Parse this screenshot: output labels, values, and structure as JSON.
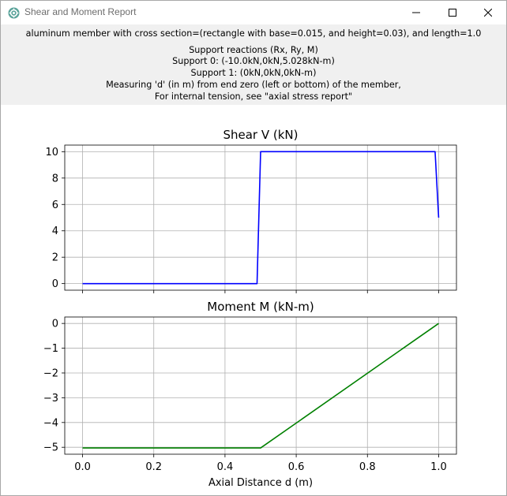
{
  "window": {
    "title": "Shear and Moment Report",
    "icon": "gear-icon",
    "controls": [
      "minimize-icon",
      "maximize-icon",
      "close-icon"
    ]
  },
  "header": {
    "description": "aluminum member with cross section=(rectangle with base=0.015, and height=0.03), and length=1.0",
    "reactions_title": "Support reactions (Rx, Ry, M)",
    "support0": "Support 0: (-10.0kN,0kN,5.028kN-m)",
    "support1": "Support 1: (0kN,0kN,0kN-m)",
    "measuring_note": "Measuring 'd' (in m) from end zero (left or bottom) of the member,",
    "tension_note": "For internal tension, see \"axial stress report\""
  },
  "chart_data": [
    {
      "type": "line",
      "title": "Shear V (kN)",
      "xlabel": "",
      "ylabel": "",
      "xlim": [
        -0.05,
        1.05
      ],
      "ylim": [
        -0.5,
        10.5
      ],
      "yticks": [
        0,
        2,
        4,
        6,
        8,
        10
      ],
      "xticks": [
        0.0,
        0.2,
        0.4,
        0.6,
        0.8,
        1.0
      ],
      "show_xtick_labels": false,
      "grid": true,
      "color": "#0000ff",
      "x": [
        0.0,
        0.49,
        0.5,
        0.99,
        1.0
      ],
      "y": [
        0,
        0,
        10,
        10,
        5
      ]
    },
    {
      "type": "line",
      "title": "Moment M (kN-m)",
      "xlabel": "Axial Distance d (m)",
      "ylabel": "",
      "xlim": [
        -0.05,
        1.05
      ],
      "ylim": [
        -5.28,
        0.26
      ],
      "yticks": [
        -5,
        -4,
        -3,
        -2,
        -1,
        0
      ],
      "xticks": [
        0.0,
        0.2,
        0.4,
        0.6,
        0.8,
        1.0
      ],
      "show_xtick_labels": true,
      "grid": true,
      "color": "#008000",
      "x": [
        0.0,
        0.5,
        1.0
      ],
      "y": [
        -5.028,
        -5.028,
        0
      ]
    }
  ]
}
